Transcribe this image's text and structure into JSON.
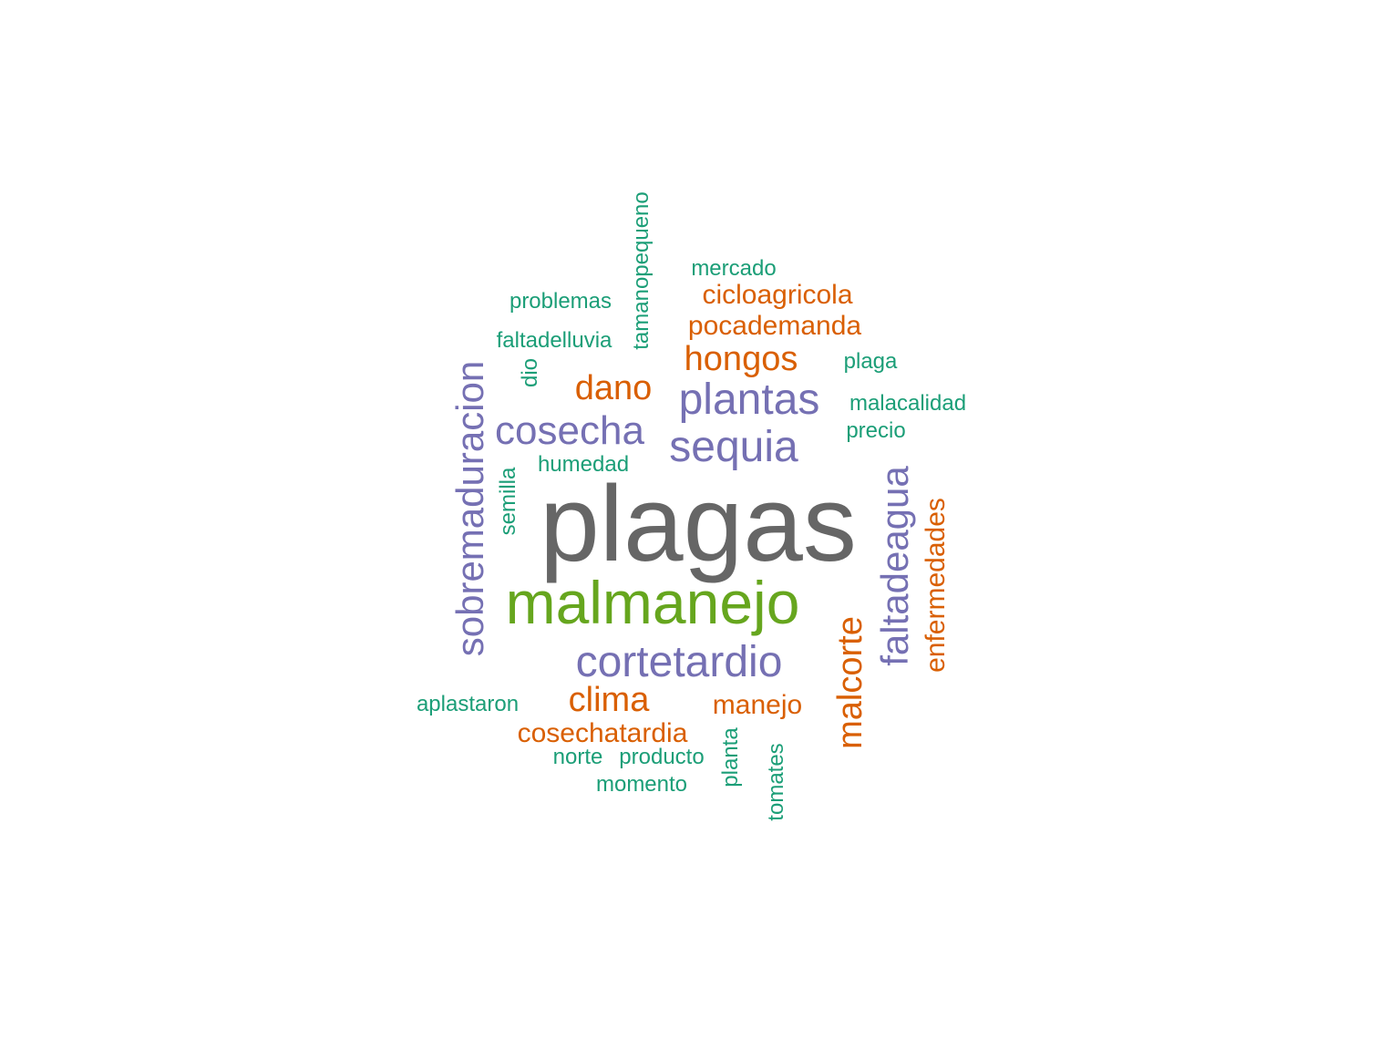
{
  "palette": {
    "teal": "#1b9e77",
    "orange": "#d95f02",
    "purple": "#7570b3",
    "green": "#66a61e",
    "gray": "#666666"
  },
  "words": [
    {
      "text": "plagas",
      "color": "gray"
    },
    {
      "text": "malmanejo",
      "color": "green"
    },
    {
      "text": "cortetardio",
      "color": "purple"
    },
    {
      "text": "sobremaduracion",
      "color": "purple"
    },
    {
      "text": "faltadeagua",
      "color": "purple"
    },
    {
      "text": "sequia",
      "color": "purple"
    },
    {
      "text": "plantas",
      "color": "purple"
    },
    {
      "text": "cosecha",
      "color": "purple"
    },
    {
      "text": "malcorte",
      "color": "orange"
    },
    {
      "text": "enfermedades",
      "color": "orange"
    },
    {
      "text": "hongos",
      "color": "orange"
    },
    {
      "text": "dano",
      "color": "orange"
    },
    {
      "text": "clima",
      "color": "orange"
    },
    {
      "text": "manejo",
      "color": "orange"
    },
    {
      "text": "cosechatardia",
      "color": "orange"
    },
    {
      "text": "pocademanda",
      "color": "orange"
    },
    {
      "text": "cicloagricola",
      "color": "orange"
    },
    {
      "text": "mercado",
      "color": "teal"
    },
    {
      "text": "problemas",
      "color": "teal"
    },
    {
      "text": "faltadelluvia",
      "color": "teal"
    },
    {
      "text": "tamanopequeno",
      "color": "teal"
    },
    {
      "text": "dio",
      "color": "teal"
    },
    {
      "text": "plaga",
      "color": "teal"
    },
    {
      "text": "malacalidad",
      "color": "teal"
    },
    {
      "text": "precio",
      "color": "teal"
    },
    {
      "text": "humedad",
      "color": "teal"
    },
    {
      "text": "semilla",
      "color": "teal"
    },
    {
      "text": "aplastaron",
      "color": "teal"
    },
    {
      "text": "norte",
      "color": "teal"
    },
    {
      "text": "producto",
      "color": "teal"
    },
    {
      "text": "momento",
      "color": "teal"
    },
    {
      "text": "planta",
      "color": "teal"
    },
    {
      "text": "tomates",
      "color": "teal"
    }
  ]
}
